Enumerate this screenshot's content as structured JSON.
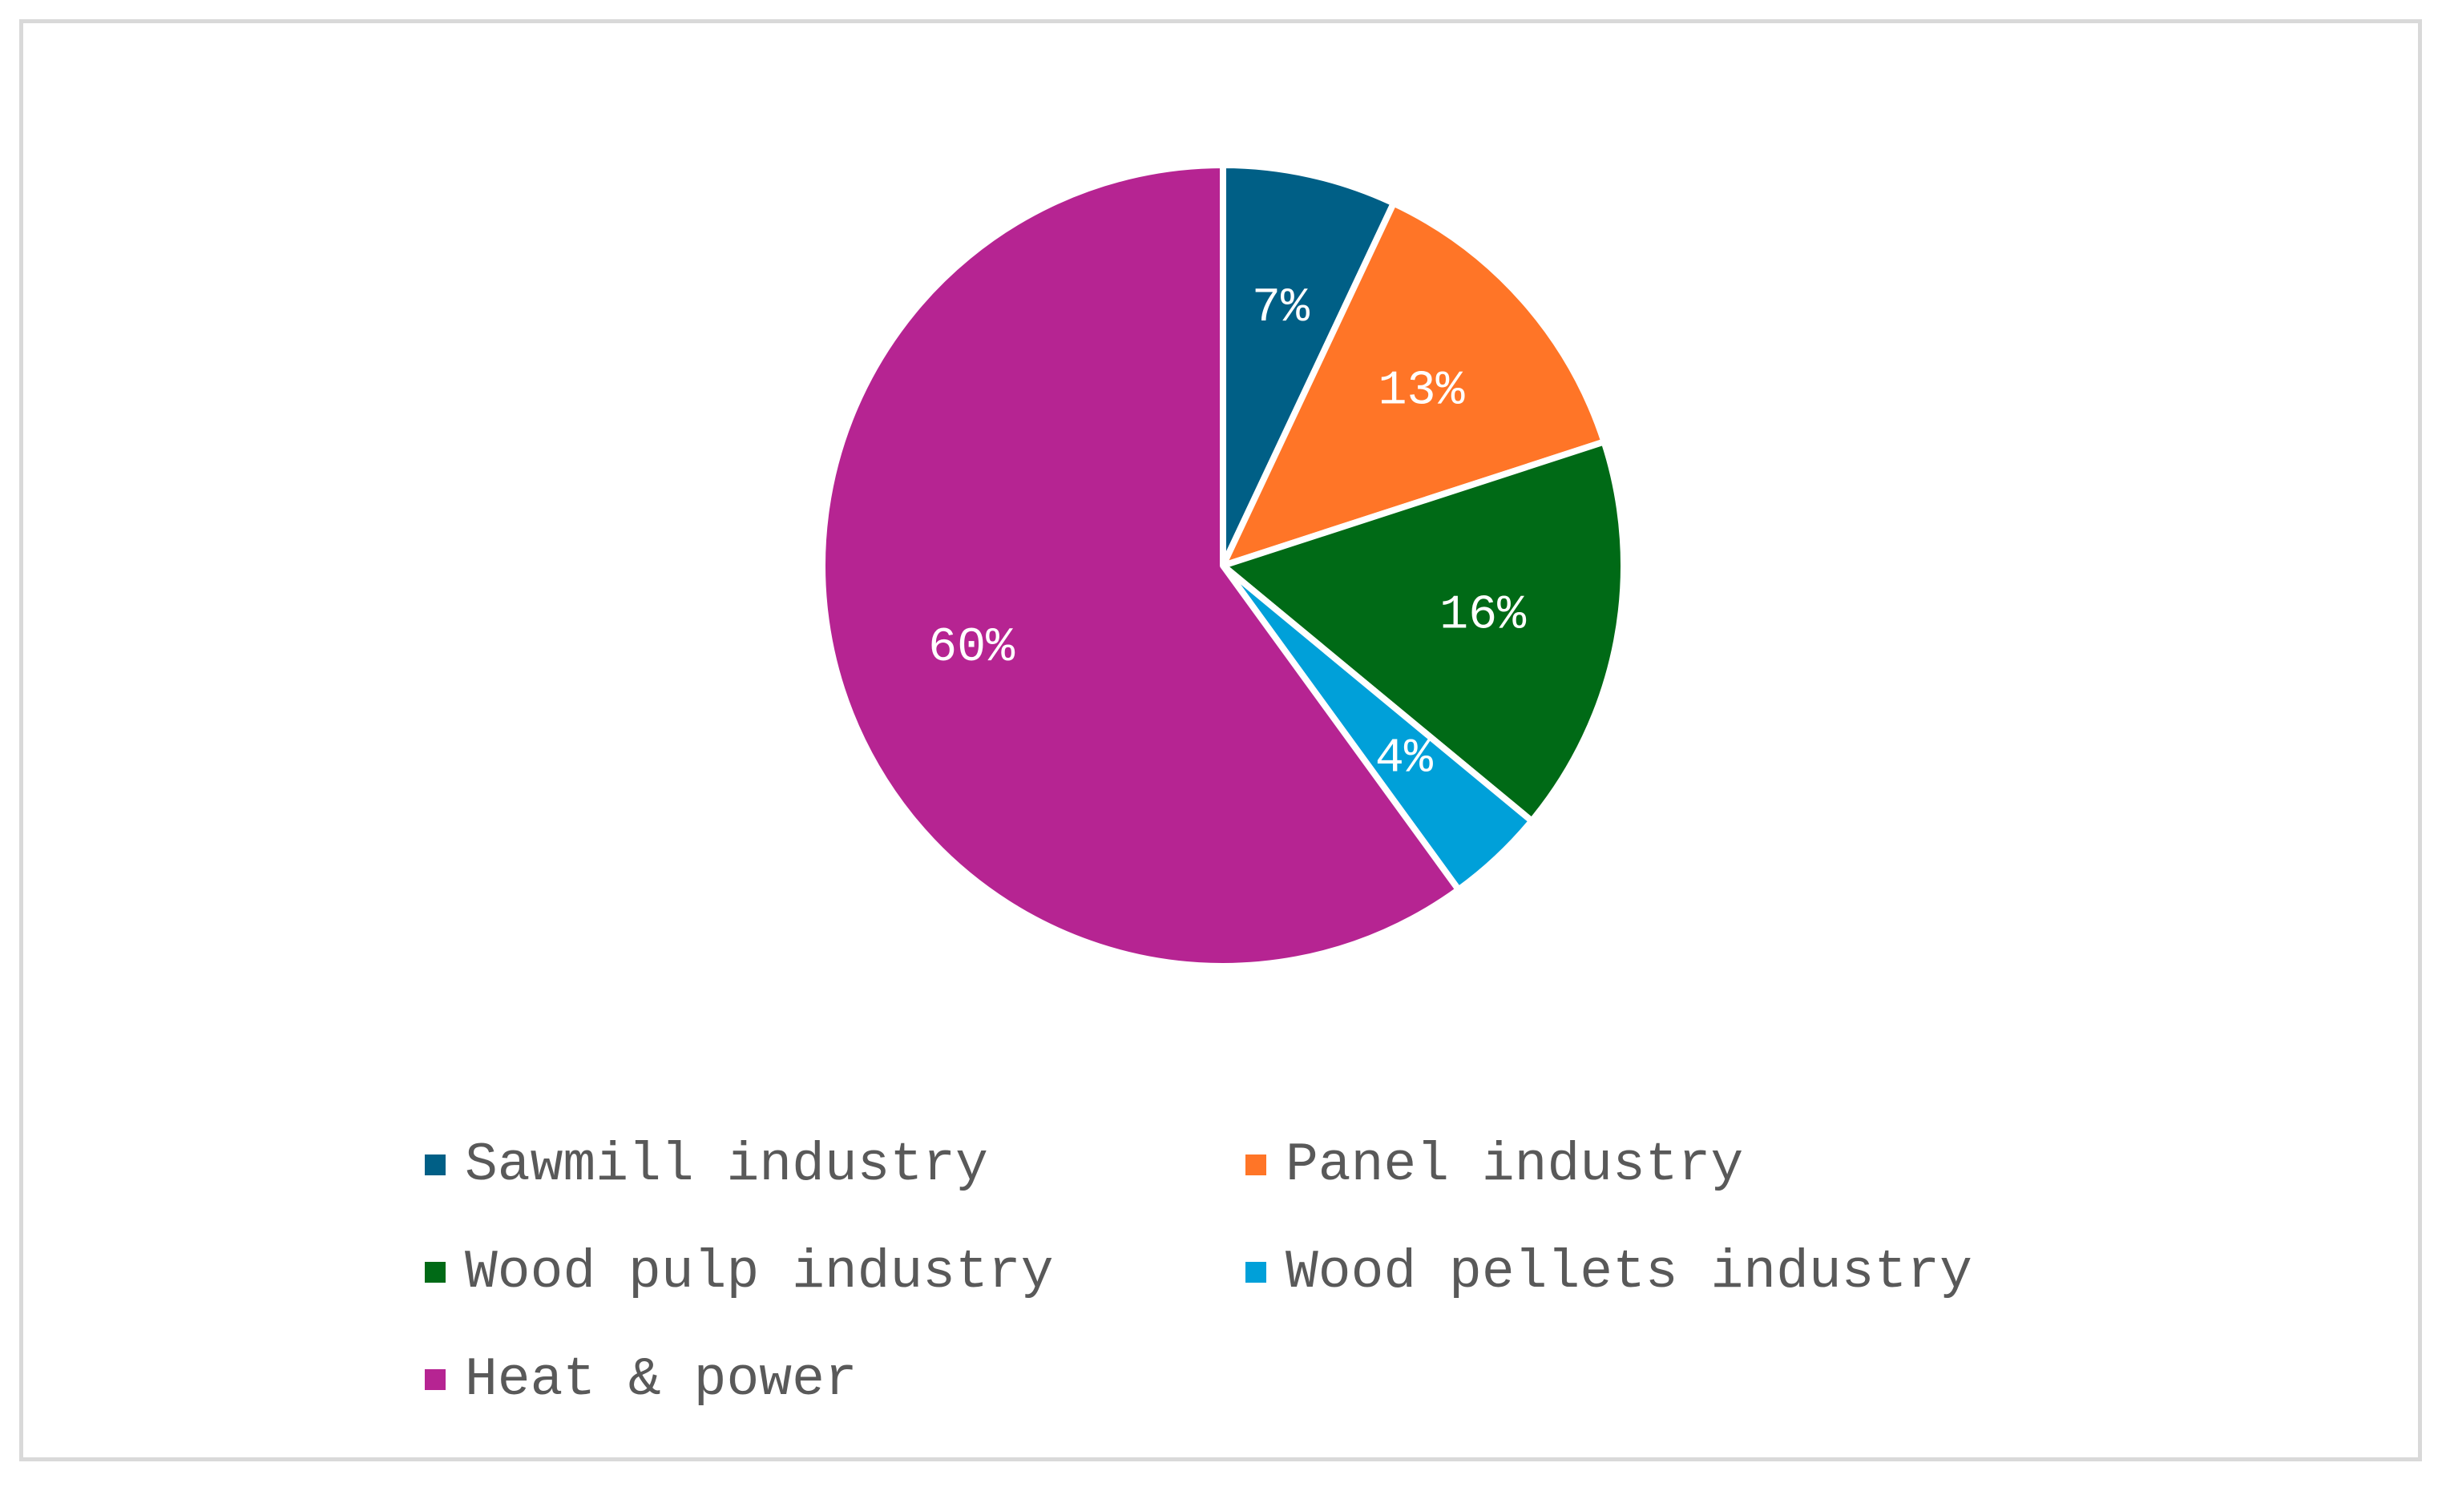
{
  "chart_data": {
    "type": "pie",
    "title": "",
    "slices": [
      {
        "name": "Sawmill industry",
        "value": 7,
        "label": "7%",
        "color": "#005F86"
      },
      {
        "name": "Panel industry",
        "value": 13,
        "label": "13%",
        "color": "#FF7527"
      },
      {
        "name": "Wood pulp industry",
        "value": 16,
        "label": "16%",
        "color": "#006A16"
      },
      {
        "name": "Wood pellets industry",
        "value": 4,
        "label": "4%",
        "color": "#00A0D9"
      },
      {
        "name": "Heat & power",
        "value": 60,
        "label": "60%",
        "color": "#B62492"
      }
    ],
    "legend_position": "bottom",
    "start_angle": "12 o'clock",
    "direction": "clockwise"
  }
}
